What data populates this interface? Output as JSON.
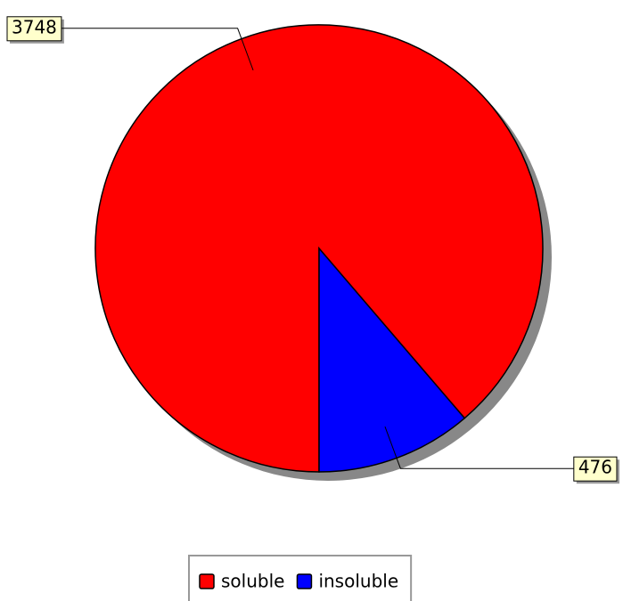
{
  "chart_data": {
    "type": "pie",
    "categories": [
      "soluble",
      "insoluble"
    ],
    "values": [
      3748,
      476
    ],
    "colors": [
      "#ff0000",
      "#0000ff"
    ],
    "legend": "bottom"
  }
}
